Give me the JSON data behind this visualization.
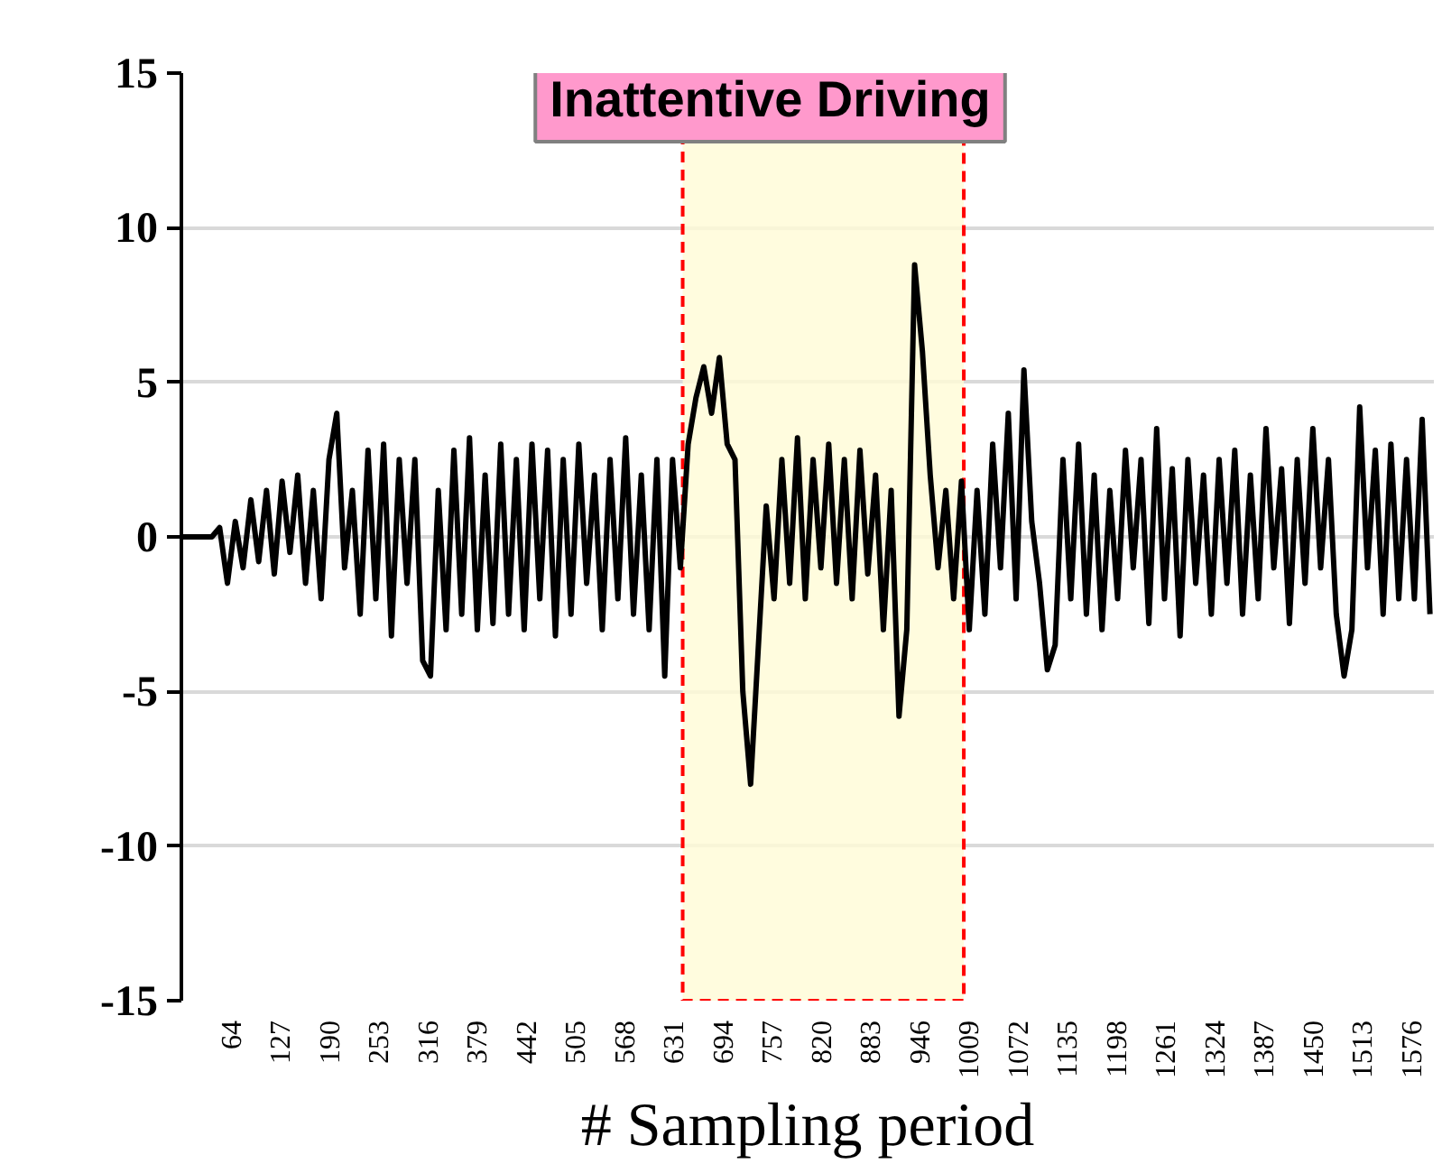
{
  "chart_data": {
    "type": "line",
    "title": "Inattentive Driving",
    "xlabel": "# Sampling period",
    "x": [
      1,
      40,
      50,
      60,
      70,
      80,
      90,
      100,
      110,
      120,
      130,
      140,
      150,
      160,
      170,
      180,
      190,
      200,
      210,
      220,
      230,
      240,
      250,
      260,
      270,
      280,
      290,
      300,
      310,
      320,
      330,
      340,
      350,
      360,
      370,
      380,
      390,
      400,
      410,
      420,
      430,
      440,
      450,
      460,
      470,
      480,
      490,
      500,
      510,
      520,
      530,
      540,
      550,
      560,
      570,
      580,
      590,
      600,
      610,
      620,
      630,
      640,
      650,
      660,
      670,
      680,
      690,
      700,
      710,
      720,
      730,
      740,
      750,
      760,
      770,
      780,
      790,
      800,
      810,
      820,
      830,
      840,
      850,
      860,
      870,
      880,
      890,
      900,
      910,
      920,
      930,
      940,
      950,
      960,
      970,
      980,
      990,
      1000,
      1010,
      1020,
      1030,
      1040,
      1050,
      1060,
      1070,
      1080,
      1090,
      1100,
      1110,
      1120,
      1130,
      1140,
      1150,
      1160,
      1170,
      1180,
      1190,
      1200,
      1210,
      1220,
      1230,
      1240,
      1250,
      1260,
      1270,
      1280,
      1290,
      1300,
      1310,
      1320,
      1330,
      1340,
      1350,
      1360,
      1370,
      1380,
      1390,
      1400,
      1410,
      1420,
      1430,
      1440,
      1450,
      1460,
      1470,
      1480,
      1490,
      1500,
      1510,
      1520,
      1530,
      1540,
      1550,
      1560,
      1570,
      1580,
      1590,
      1600
    ],
    "series": [
      {
        "color": "#000000",
        "values": [
          0,
          0,
          0.3,
          -1.5,
          0.5,
          -1.0,
          1.2,
          -0.8,
          1.5,
          -1.2,
          1.8,
          -0.5,
          2.0,
          -1.5,
          1.5,
          -2.0,
          2.5,
          4.0,
          -1.0,
          1.5,
          -2.5,
          2.8,
          -2.0,
          3.0,
          -3.2,
          2.5,
          -1.5,
          2.5,
          -4.0,
          -4.5,
          1.5,
          -3.0,
          2.8,
          -2.5,
          3.2,
          -3.0,
          2.0,
          -2.8,
          3.0,
          -2.5,
          2.5,
          -3.0,
          3.0,
          -2.0,
          2.8,
          -3.2,
          2.5,
          -2.5,
          3.0,
          -1.5,
          2.0,
          -3.0,
          2.5,
          -2.0,
          3.2,
          -2.5,
          2.0,
          -3.0,
          2.5,
          -4.5,
          2.5,
          -1.0,
          3.0,
          4.5,
          5.5,
          4.0,
          5.8,
          3.0,
          2.5,
          -5.0,
          -8.0,
          -3.5,
          1.0,
          -2.0,
          2.5,
          -1.5,
          3.2,
          -2.0,
          2.5,
          -1.0,
          3.0,
          -1.5,
          2.5,
          -2.0,
          2.8,
          -1.2,
          2.0,
          -3.0,
          1.5,
          -5.8,
          -3.0,
          8.8,
          6.0,
          2.0,
          -1.0,
          1.5,
          -2.0,
          1.8,
          -3.0,
          1.5,
          -2.5,
          3.0,
          -1.0,
          4.0,
          -2.0,
          5.4,
          0.5,
          -1.5,
          -4.3,
          -3.5,
          2.5,
          -2.0,
          3.0,
          -2.5,
          2.0,
          -3.0,
          1.5,
          -2.0,
          2.8,
          -1.0,
          2.5,
          -2.8,
          3.5,
          -2.0,
          2.2,
          -3.2,
          2.5,
          -1.5,
          2.0,
          -2.5,
          2.5,
          -1.5,
          2.8,
          -2.5,
          2.0,
          -2.0,
          3.5,
          -1.0,
          2.2,
          -2.8,
          2.5,
          -1.5,
          3.5,
          -1.0,
          2.5,
          -2.5,
          -4.5,
          -3.0,
          4.2,
          -1.0,
          2.8,
          -2.5,
          3.0,
          -2.0,
          2.5,
          -2.0,
          3.8,
          -2.5
        ]
      }
    ],
    "xlim": [
      1,
      1605
    ],
    "xticks": [
      64,
      127,
      190,
      253,
      316,
      379,
      442,
      505,
      568,
      631,
      694,
      757,
      820,
      883,
      946,
      1009,
      1072,
      1135,
      1198,
      1261,
      1324,
      1387,
      1450,
      1513,
      1576
    ],
    "ylim": [
      -15,
      15
    ],
    "yticks": [
      -15,
      -10,
      -5,
      0,
      5,
      10,
      15
    ],
    "grid": "y",
    "marker": "none",
    "line_style": "solid",
    "bands": [
      {
        "axis": "x",
        "from": 643,
        "to": 1003,
        "color": "#fffbd6"
      }
    ]
  }
}
